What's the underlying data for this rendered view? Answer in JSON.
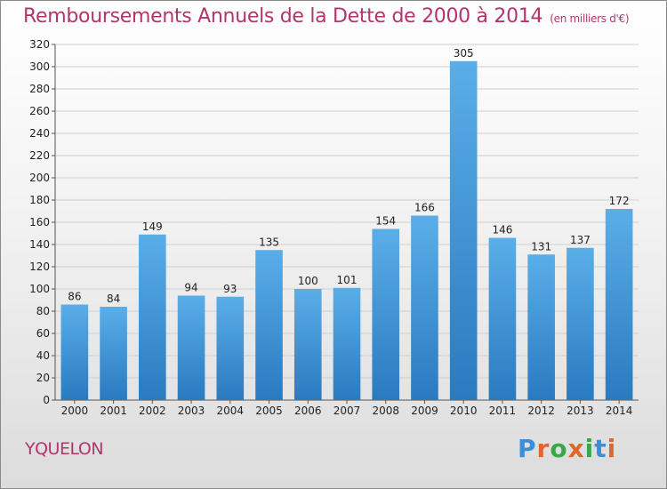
{
  "chart_data": {
    "type": "bar",
    "title": "Remboursements Annuels de la Dette de 2000 à 2014",
    "subtitle": "(en milliers d'€)",
    "categories": [
      "2000",
      "2001",
      "2002",
      "2003",
      "2004",
      "2005",
      "2006",
      "2007",
      "2008",
      "2009",
      "2010",
      "2011",
      "2012",
      "2013",
      "2014"
    ],
    "values": [
      86,
      84,
      149,
      94,
      93,
      135,
      100,
      101,
      154,
      166,
      305,
      146,
      131,
      137,
      172
    ],
    "ylim": [
      0,
      320
    ],
    "yticks": [
      0,
      20,
      40,
      60,
      80,
      100,
      120,
      140,
      160,
      180,
      200,
      220,
      240,
      260,
      280,
      300,
      320
    ],
    "xlabel": "",
    "ylabel": "",
    "grid": true
  },
  "commune": "YQUELON",
  "logo": {
    "text": "Proxiti",
    "letters": [
      "P",
      "r",
      "o",
      "x",
      "i",
      "t",
      "i"
    ],
    "colors": [
      "#3a8fd6",
      "#e0672a",
      "#3aa84a",
      "#e0672a",
      "#3aa84a",
      "#3a8fd6",
      "#e0672a"
    ]
  },
  "colors": {
    "title": "#b3356b",
    "bar_top": "#5aaee8",
    "bar_bottom": "#2a7ac0"
  }
}
